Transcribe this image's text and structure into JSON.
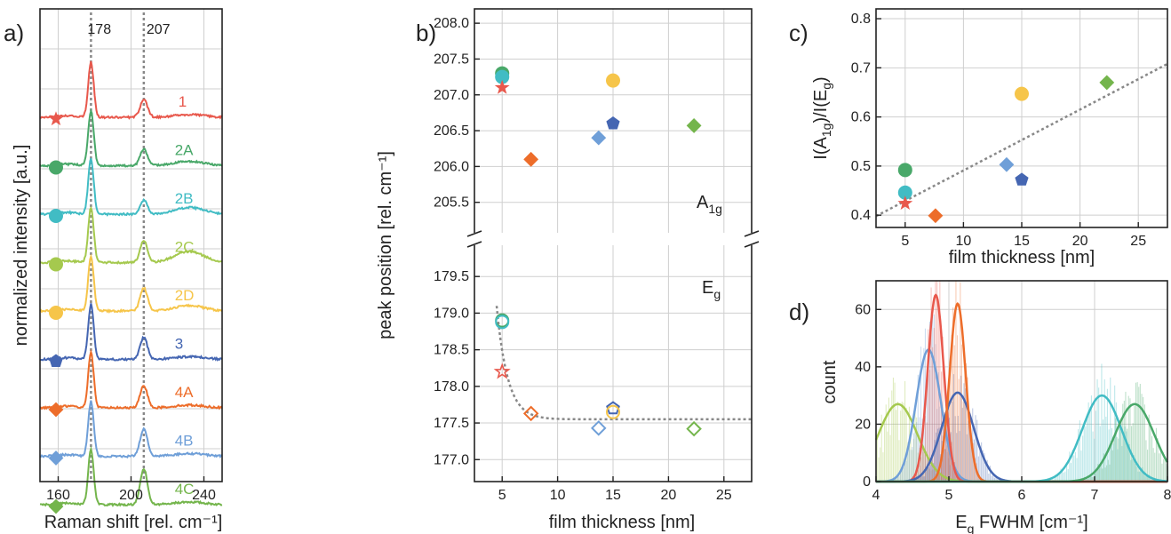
{
  "figure": {
    "colors": {
      "1": "#e8584c",
      "2A": "#49a869",
      "2B": "#41bcc4",
      "2C": "#a5c94e",
      "2D": "#f6c54a",
      "3": "#4566b2",
      "4A": "#ed6d2a",
      "4B": "#6f9fd8",
      "4C": "#74b54c"
    }
  },
  "chart_data": [
    {
      "type": "line",
      "panel_label": "a)",
      "xlabel": "Raman shift [rel. cm⁻¹]",
      "ylabel": "normalized intensity [a.u.]",
      "xlim": [
        150,
        250
      ],
      "x_ticks": [
        "160",
        "200",
        "240"
      ],
      "peak_markers": [
        178,
        207
      ],
      "peak_marker_labels": [
        "178",
        "207"
      ],
      "grid": true,
      "series": [
        {
          "name": "1",
          "marker": "star",
          "peak1": 1.0,
          "peak2": 0.32,
          "extra": 0.05
        },
        {
          "name": "2A",
          "marker": "circle",
          "peak1": 1.0,
          "peak2": 0.3,
          "extra": 0.08
        },
        {
          "name": "2B",
          "marker": "circle",
          "peak1": 1.0,
          "peak2": 0.25,
          "extra": 0.12
        },
        {
          "name": "2C",
          "marker": "circle",
          "peak1": 1.0,
          "peak2": 0.4,
          "extra": 0.2
        },
        {
          "name": "2D",
          "marker": "circle",
          "peak1": 1.0,
          "peak2": 0.42,
          "extra": 0.1
        },
        {
          "name": "3",
          "marker": "pentagon",
          "peak1": 1.0,
          "peak2": 0.4,
          "extra": 0.05
        },
        {
          "name": "4A",
          "marker": "diamond",
          "peak1": 1.0,
          "peak2": 0.4,
          "extra": 0.05
        },
        {
          "name": "4B",
          "marker": "diamond",
          "peak1": 1.0,
          "peak2": 0.5,
          "extra": 0.05
        },
        {
          "name": "4C",
          "marker": "diamond",
          "peak1": 1.0,
          "peak2": 0.65,
          "extra": 0.05
        }
      ]
    },
    {
      "type": "scatter",
      "panel_label": "b)",
      "xlabel": "film thickness [nm]",
      "ylabel": "peak position [rel. cm⁻¹]",
      "xlim": [
        2.5,
        27.5
      ],
      "x_ticks": [
        "5",
        "10",
        "15",
        "20",
        "25"
      ],
      "upper_ylim": [
        205.0,
        208.2
      ],
      "upper_y_ticks": [
        "205.5",
        "206.0",
        "206.5",
        "207.0",
        "207.5",
        "208.0"
      ],
      "lower_ylim": [
        176.7,
        180.0
      ],
      "lower_y_ticks": [
        "177.0",
        "177.5",
        "178.0",
        "178.5",
        "179.0",
        "179.5"
      ],
      "upper_label": "A1g",
      "lower_label": "Eg",
      "grid": true,
      "A1g_points": [
        {
          "sample": "2A",
          "x": 5.0,
          "y": 207.3,
          "marker": "circle"
        },
        {
          "sample": "2B",
          "x": 5.0,
          "y": 207.25,
          "marker": "circle"
        },
        {
          "sample": "1",
          "x": 5.0,
          "y": 207.1,
          "marker": "star"
        },
        {
          "sample": "4A",
          "x": 7.6,
          "y": 206.1,
          "marker": "diamond"
        },
        {
          "sample": "4B",
          "x": 13.7,
          "y": 206.4,
          "marker": "diamond"
        },
        {
          "sample": "3",
          "x": 15.0,
          "y": 206.6,
          "marker": "pentagon"
        },
        {
          "sample": "2D",
          "x": 15.0,
          "y": 207.2,
          "marker": "circle"
        },
        {
          "sample": "4C",
          "x": 22.3,
          "y": 206.57,
          "marker": "diamond"
        }
      ],
      "Eg_points": [
        {
          "sample": "2A",
          "x": 5.0,
          "y": 178.9,
          "marker": "circle"
        },
        {
          "sample": "2B",
          "x": 5.0,
          "y": 178.88,
          "marker": "circle"
        },
        {
          "sample": "1",
          "x": 5.0,
          "y": 178.2,
          "marker": "star"
        },
        {
          "sample": "4A",
          "x": 7.6,
          "y": 177.63,
          "marker": "diamond"
        },
        {
          "sample": "4B",
          "x": 13.7,
          "y": 177.43,
          "marker": "diamond"
        },
        {
          "sample": "3",
          "x": 15.0,
          "y": 177.7,
          "marker": "pentagon"
        },
        {
          "sample": "2D",
          "x": 15.0,
          "y": 177.65,
          "marker": "circle"
        },
        {
          "sample": "4C",
          "x": 22.3,
          "y": 177.42,
          "marker": "diamond"
        }
      ],
      "fit_curve": {
        "asymptote": 177.55,
        "amplitude": 1.55,
        "decay": 1.0,
        "x0": 4.5
      }
    },
    {
      "type": "scatter",
      "panel_label": "c)",
      "xlabel": "film thickness [nm]",
      "ylabel": "I(A1g)/I(Eg)",
      "xlim": [
        2.5,
        27.5
      ],
      "x_ticks": [
        "5",
        "10",
        "15",
        "20",
        "25"
      ],
      "ylim": [
        0.375,
        0.82
      ],
      "y_ticks": [
        "0.4",
        "0.5",
        "0.6",
        "0.7",
        "0.8"
      ],
      "grid": true,
      "points": [
        {
          "sample": "2A",
          "x": 5.0,
          "y": 0.492,
          "marker": "circle"
        },
        {
          "sample": "2B",
          "x": 5.0,
          "y": 0.446,
          "marker": "circle"
        },
        {
          "sample": "1",
          "x": 5.0,
          "y": 0.424,
          "marker": "star"
        },
        {
          "sample": "4A",
          "x": 7.6,
          "y": 0.399,
          "marker": "diamond"
        },
        {
          "sample": "4B",
          "x": 13.7,
          "y": 0.503,
          "marker": "diamond"
        },
        {
          "sample": "3",
          "x": 15.0,
          "y": 0.472,
          "marker": "pentagon"
        },
        {
          "sample": "2D",
          "x": 15.0,
          "y": 0.647,
          "marker": "circle"
        },
        {
          "sample": "4C",
          "x": 22.3,
          "y": 0.67,
          "marker": "diamond"
        }
      ],
      "fit_line": {
        "x": [
          2.5,
          27.5
        ],
        "y": [
          0.398,
          0.708
        ]
      }
    },
    {
      "type": "bar",
      "panel_label": "d)",
      "xlabel": "Eg FWHM [cm⁻¹]",
      "ylabel": "count",
      "xlim": [
        4,
        8
      ],
      "x_ticks": [
        "4",
        "5",
        "6",
        "7",
        "8"
      ],
      "ylim": [
        0,
        70
      ],
      "y_ticks": [
        "0",
        "20",
        "40",
        "60"
      ],
      "grid": true,
      "gaussians": [
        {
          "sample": "2C",
          "mu": 4.3,
          "sigma": 0.27,
          "amp": 27
        },
        {
          "sample": "4B",
          "mu": 4.72,
          "sigma": 0.17,
          "amp": 46
        },
        {
          "sample": "1",
          "mu": 4.82,
          "sigma": 0.11,
          "amp": 65
        },
        {
          "sample": "3",
          "mu": 5.12,
          "sigma": 0.22,
          "amp": 31
        },
        {
          "sample": "4A",
          "mu": 5.12,
          "sigma": 0.11,
          "amp": 62
        },
        {
          "sample": "2B",
          "mu": 7.1,
          "sigma": 0.27,
          "amp": 30
        },
        {
          "sample": "2A",
          "mu": 7.55,
          "sigma": 0.27,
          "amp": 27
        }
      ]
    }
  ]
}
